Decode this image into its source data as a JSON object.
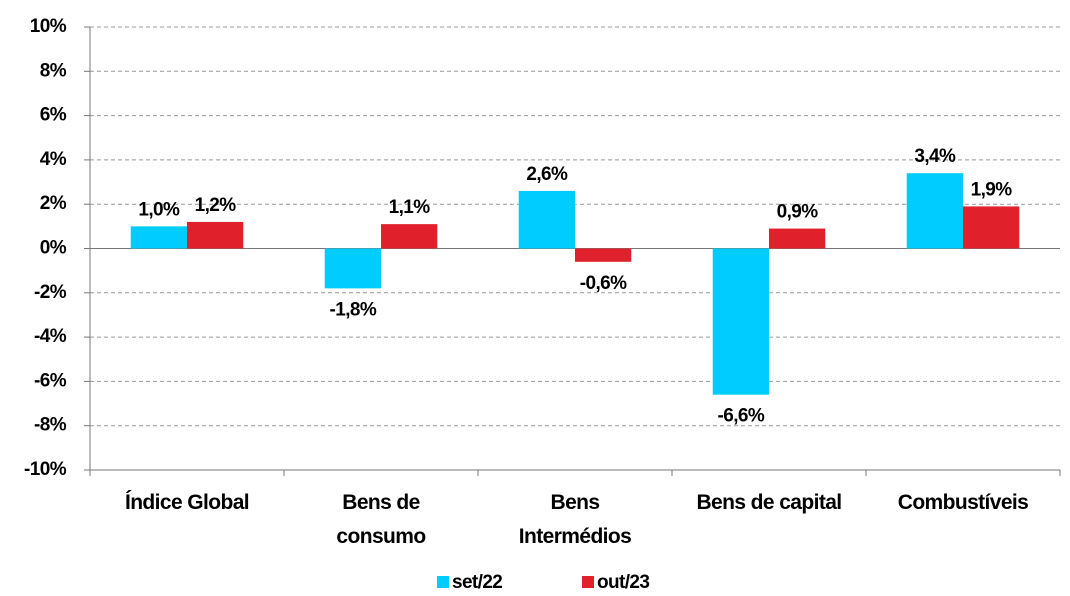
{
  "chart_data": {
    "type": "bar",
    "categories": [
      "Índice Global",
      "Bens de\nconsumo",
      "Bens\nIntermédios",
      "Bens de capital",
      "Combustíveis"
    ],
    "series": [
      {
        "name": "set/22",
        "color": "#00CCFF",
        "values": [
          1.0,
          -1.8,
          2.6,
          -6.6,
          3.4
        ],
        "value_labels": [
          "1,0%",
          "-1,8%",
          "2,6%",
          "-6,6%",
          "3,4%"
        ]
      },
      {
        "name": "out/23",
        "color": "#E0202A",
        "values": [
          1.2,
          1.1,
          -0.6,
          0.9,
          1.9
        ],
        "value_labels": [
          "1,2%",
          "1,1%",
          "-0,6%",
          "0,9%",
          "1,9%"
        ]
      }
    ],
    "ylim": [
      -10,
      10
    ],
    "yticks": [
      {
        "value": -10,
        "label": "-10%"
      },
      {
        "value": -8,
        "label": "-8%"
      },
      {
        "value": -6,
        "label": "-6%"
      },
      {
        "value": -4,
        "label": "-4%"
      },
      {
        "value": -2,
        "label": "-2%"
      },
      {
        "value": 0,
        "label": "0%"
      },
      {
        "value": 2,
        "label": "2%"
      },
      {
        "value": 4,
        "label": "4%"
      },
      {
        "value": 6,
        "label": "6%"
      },
      {
        "value": 8,
        "label": "8%"
      },
      {
        "value": 10,
        "label": "10%"
      }
    ],
    "grid": true,
    "legend": "bottom"
  }
}
